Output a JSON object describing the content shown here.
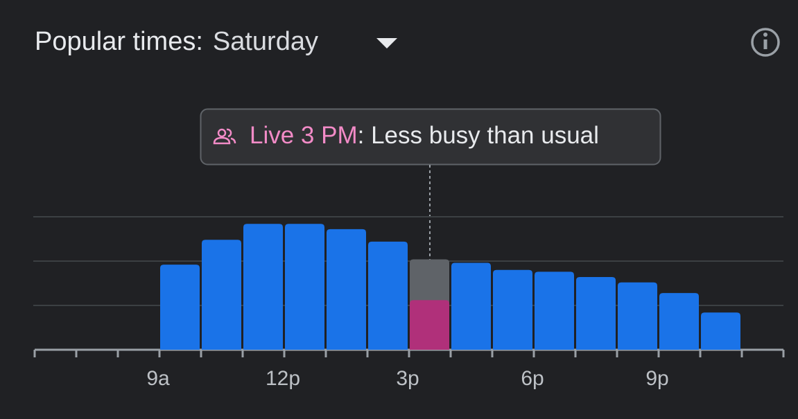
{
  "header": {
    "title": "Popular times:",
    "day": "Saturday"
  },
  "chart_data": {
    "type": "bar",
    "categories": [
      null,
      null,
      null,
      "9a",
      null,
      null,
      "12p",
      null,
      null,
      "3p",
      null,
      null,
      "6p",
      null,
      null,
      "9p",
      null,
      null
    ],
    "values": [
      0,
      0,
      0,
      48,
      62,
      71,
      71,
      68,
      61,
      51,
      49,
      45,
      44,
      41,
      38,
      32,
      21,
      0
    ],
    "live_values": [
      null,
      null,
      null,
      null,
      null,
      null,
      null,
      null,
      null,
      28,
      null,
      null,
      null,
      null,
      null,
      null,
      null,
      null
    ],
    "color": "#1a73e8",
    "usual_color": "#5f6368",
    "live_color": "#b0307a",
    "ylim": [
      0,
      100
    ],
    "yticks": [
      25,
      50,
      75
    ],
    "grid": true,
    "live_label": "Live 3 PM",
    "live_text": ": Less busy than usual"
  }
}
